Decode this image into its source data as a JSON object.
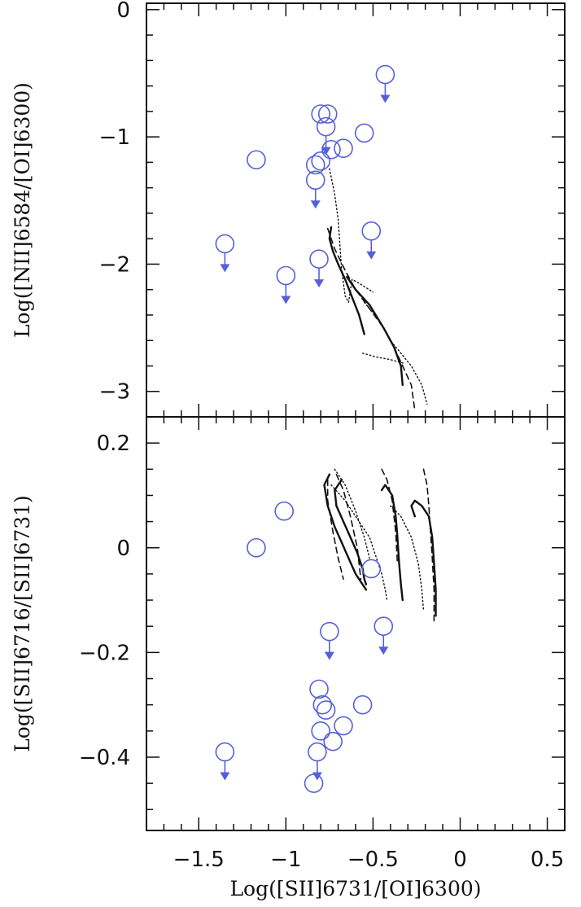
{
  "chart_data": {
    "type": "scatter",
    "marker_color": "#5560d8",
    "line_color": "#111111",
    "shared_x": {
      "label": "Log([SII]6731/[OI]6300)",
      "range": [
        -1.8,
        0.6
      ],
      "ticks": [
        "−1.5",
        "−1",
        "−0.5",
        "0",
        "0.5"
      ],
      "tick_values": [
        -1.5,
        -1,
        -0.5,
        0,
        0.5
      ]
    },
    "panels": [
      {
        "id": "top",
        "ylabel": "Log([NII]6584/[OI]6300)",
        "ylim": [
          -3.2,
          0.05
        ],
        "yticks": [
          "0",
          "−1",
          "−2",
          "−3"
        ],
        "ytick_values": [
          0,
          -1,
          -2,
          -3
        ],
        "points": [
          {
            "x": -1.17,
            "y": -1.18,
            "upper_limit": false
          },
          {
            "x": -1.35,
            "y": -1.84,
            "upper_limit": true
          },
          {
            "x": -1.0,
            "y": -2.09,
            "upper_limit": true
          },
          {
            "x": -0.8,
            "y": -0.82,
            "upper_limit": false
          },
          {
            "x": -0.76,
            "y": -0.82,
            "upper_limit": false
          },
          {
            "x": -0.77,
            "y": -0.92,
            "upper_limit": true
          },
          {
            "x": -0.83,
            "y": -1.22,
            "upper_limit": false
          },
          {
            "x": -0.8,
            "y": -1.19,
            "upper_limit": false
          },
          {
            "x": -0.83,
            "y": -1.34,
            "upper_limit": true
          },
          {
            "x": -0.74,
            "y": -1.1,
            "upper_limit": false
          },
          {
            "x": -0.67,
            "y": -1.09,
            "upper_limit": false
          },
          {
            "x": -0.55,
            "y": -0.97,
            "upper_limit": false
          },
          {
            "x": -0.43,
            "y": -0.51,
            "upper_limit": true
          },
          {
            "x": -0.51,
            "y": -1.74,
            "upper_limit": true
          },
          {
            "x": -0.81,
            "y": -1.96,
            "upper_limit": true
          }
        ],
        "model_tracks": [
          {
            "style": "solid",
            "x": [
              -0.74,
              -0.75,
              -0.73,
              -0.7,
              -0.66,
              -0.62,
              -0.58,
              -0.55
            ],
            "y": [
              -1.71,
              -1.8,
              -1.9,
              -2.0,
              -2.12,
              -2.26,
              -2.4,
              -2.55
            ]
          },
          {
            "style": "solid",
            "x": [
              -0.65,
              -0.6,
              -0.52,
              -0.44,
              -0.38,
              -0.34,
              -0.33
            ],
            "y": [
              -2.1,
              -2.2,
              -2.32,
              -2.5,
              -2.65,
              -2.8,
              -2.95
            ]
          },
          {
            "style": "dashed",
            "x": [
              -0.76,
              -0.72,
              -0.66,
              -0.6,
              -0.52,
              -0.44,
              -0.38,
              -0.33,
              -0.28,
              -0.26
            ],
            "y": [
              -1.72,
              -1.88,
              -2.05,
              -2.2,
              -2.35,
              -2.5,
              -2.65,
              -2.8,
              -2.95,
              -3.15
            ]
          },
          {
            "style": "dotted",
            "x": [
              -0.75,
              -0.72,
              -0.7,
              -0.69,
              -0.68,
              -0.66,
              -0.64,
              -0.62,
              -0.58,
              -0.5
            ],
            "y": [
              -1.25,
              -1.45,
              -1.65,
              -1.85,
              -2.05,
              -2.25,
              -2.3,
              -2.12,
              -2.15,
              -2.22
            ]
          },
          {
            "style": "dotted",
            "x": [
              -0.55,
              -0.46,
              -0.4,
              -0.34,
              -0.28,
              -0.22,
              -0.19
            ],
            "y": [
              -2.3,
              -2.45,
              -2.6,
              -2.7,
              -2.8,
              -2.95,
              -3.1
            ]
          },
          {
            "style": "dotted",
            "x": [
              -0.56,
              -0.48,
              -0.4,
              -0.32
            ],
            "y": [
              -2.7,
              -2.73,
              -2.75,
              -2.78
            ]
          }
        ]
      },
      {
        "id": "bottom",
        "ylabel": "Log([SII]6716/[SII]6731)",
        "ylim": [
          -0.54,
          0.25
        ],
        "yticks": [
          "0.2",
          "0",
          "−0.2",
          "−0.4"
        ],
        "ytick_values": [
          0.2,
          0,
          -0.2,
          -0.4
        ],
        "points": [
          {
            "x": -1.17,
            "y": 0.0,
            "upper_limit": false
          },
          {
            "x": -1.01,
            "y": 0.07,
            "upper_limit": false
          },
          {
            "x": -0.51,
            "y": -0.04,
            "upper_limit": false
          },
          {
            "x": -0.75,
            "y": -0.16,
            "upper_limit": true
          },
          {
            "x": -0.44,
            "y": -0.15,
            "upper_limit": true
          },
          {
            "x": -0.81,
            "y": -0.27,
            "upper_limit": false
          },
          {
            "x": -0.79,
            "y": -0.3,
            "upper_limit": false
          },
          {
            "x": -0.77,
            "y": -0.31,
            "upper_limit": false
          },
          {
            "x": -0.56,
            "y": -0.3,
            "upper_limit": false
          },
          {
            "x": -0.8,
            "y": -0.35,
            "upper_limit": false
          },
          {
            "x": -0.67,
            "y": -0.34,
            "upper_limit": false
          },
          {
            "x": -0.73,
            "y": -0.37,
            "upper_limit": false
          },
          {
            "x": -1.35,
            "y": -0.39,
            "upper_limit": true
          },
          {
            "x": -0.82,
            "y": -0.39,
            "upper_limit": true
          },
          {
            "x": -0.84,
            "y": -0.45,
            "upper_limit": false
          }
        ],
        "model_tracks": [
          {
            "style": "solid",
            "x": [
              -0.75,
              -0.78,
              -0.76,
              -0.72,
              -0.68,
              -0.64,
              -0.6,
              -0.56,
              -0.54
            ],
            "y": [
              0.14,
              0.12,
              0.08,
              0.04,
              0.01,
              -0.02,
              -0.05,
              -0.07,
              -0.08
            ]
          },
          {
            "style": "solid",
            "x": [
              -0.68,
              -0.72,
              -0.71,
              -0.67,
              -0.63,
              -0.59,
              -0.56,
              -0.55,
              -0.54
            ],
            "y": [
              0.13,
              0.11,
              0.08,
              0.05,
              0.02,
              -0.01,
              -0.04,
              -0.06,
              -0.07
            ]
          },
          {
            "style": "solid",
            "x": [
              -0.45,
              -0.43,
              -0.39,
              -0.37,
              -0.36,
              -0.35,
              -0.34,
              -0.33
            ],
            "y": [
              0.11,
              0.12,
              0.1,
              0.06,
              0.02,
              -0.03,
              -0.07,
              -0.1
            ]
          },
          {
            "style": "solid",
            "x": [
              -0.26,
              -0.28,
              -0.26,
              -0.22,
              -0.18,
              -0.16,
              -0.15,
              -0.14,
              -0.14
            ],
            "y": [
              0.06,
              0.08,
              0.09,
              0.08,
              0.06,
              0.02,
              -0.03,
              -0.08,
              -0.13
            ]
          },
          {
            "style": "dashed",
            "x": [
              -0.76,
              -0.76,
              -0.73,
              -0.7,
              -0.67
            ],
            "y": [
              0.13,
              0.09,
              0.03,
              -0.02,
              -0.06
            ]
          },
          {
            "style": "dashed",
            "x": [
              -0.71,
              -0.67,
              -0.63,
              -0.59,
              -0.57
            ],
            "y": [
              0.14,
              0.11,
              0.06,
              0.0,
              -0.06
            ]
          },
          {
            "style": "dashed",
            "x": [
              -0.45,
              -0.42,
              -0.39,
              -0.37,
              -0.36
            ],
            "y": [
              0.15,
              0.13,
              0.09,
              0.03,
              -0.03
            ]
          },
          {
            "style": "dashed",
            "x": [
              -0.21,
              -0.19,
              -0.18,
              -0.17,
              -0.16,
              -0.15,
              -0.15
            ],
            "y": [
              0.15,
              0.12,
              0.08,
              0.03,
              -0.02,
              -0.08,
              -0.14
            ]
          },
          {
            "style": "dotted",
            "x": [
              -0.72,
              -0.66,
              -0.6,
              -0.55,
              -0.52
            ],
            "y": [
              0.15,
              0.12,
              0.07,
              0.02,
              -0.02
            ]
          },
          {
            "style": "dotted",
            "x": [
              -0.74,
              -0.66,
              -0.58,
              -0.52,
              -0.48,
              -0.45,
              -0.43,
              -0.42
            ],
            "y": [
              0.12,
              0.09,
              0.05,
              0.02,
              -0.02,
              -0.05,
              -0.08,
              -0.1
            ]
          },
          {
            "style": "dotted",
            "x": [
              -0.4,
              -0.34,
              -0.28,
              -0.24,
              -0.22,
              -0.21
            ],
            "y": [
              0.08,
              0.06,
              0.02,
              -0.03,
              -0.08,
              -0.12
            ]
          }
        ]
      }
    ]
  }
}
